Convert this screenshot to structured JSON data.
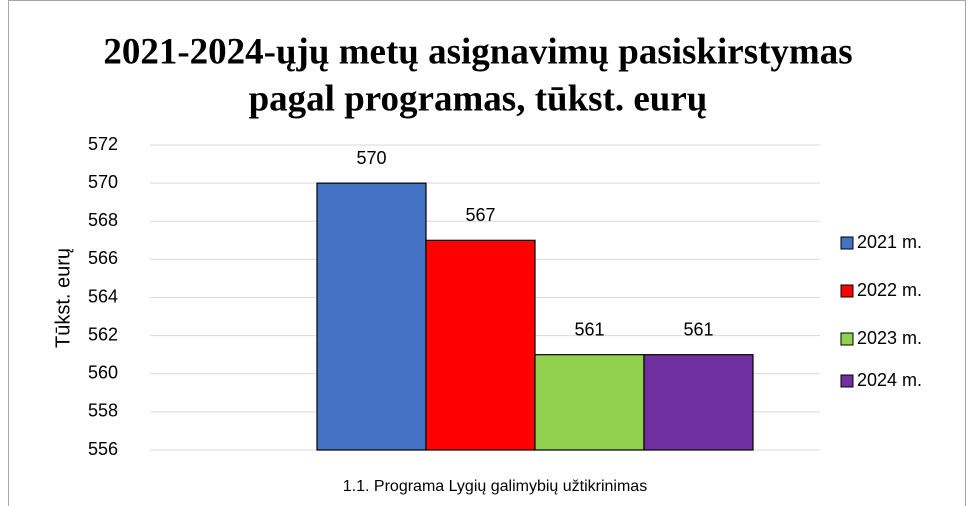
{
  "chart_data": {
    "type": "bar",
    "title": [
      "2021-2024-ųjų metų asignavimų pasiskirstymas",
      "pagal programas, tūkst. eurų"
    ],
    "ylabel": "Tūkst. eurų",
    "categories": [
      "1.1. Programa Lygių galimybių užtikrinimas"
    ],
    "series": [
      {
        "name": "2021 m.",
        "color": "#4472c4",
        "values": [
          570
        ]
      },
      {
        "name": "2022 m.",
        "color": "#ff0000",
        "values": [
          567
        ]
      },
      {
        "name": "2023 m.",
        "color": "#92d050",
        "values": [
          561
        ]
      },
      {
        "name": "2024 m.",
        "color": "#7030a0",
        "values": [
          561
        ]
      }
    ],
    "ylim": [
      556,
      572
    ],
    "yticks": [
      556,
      558,
      560,
      562,
      564,
      566,
      568,
      570,
      572
    ],
    "grid": true,
    "legend": "right"
  }
}
